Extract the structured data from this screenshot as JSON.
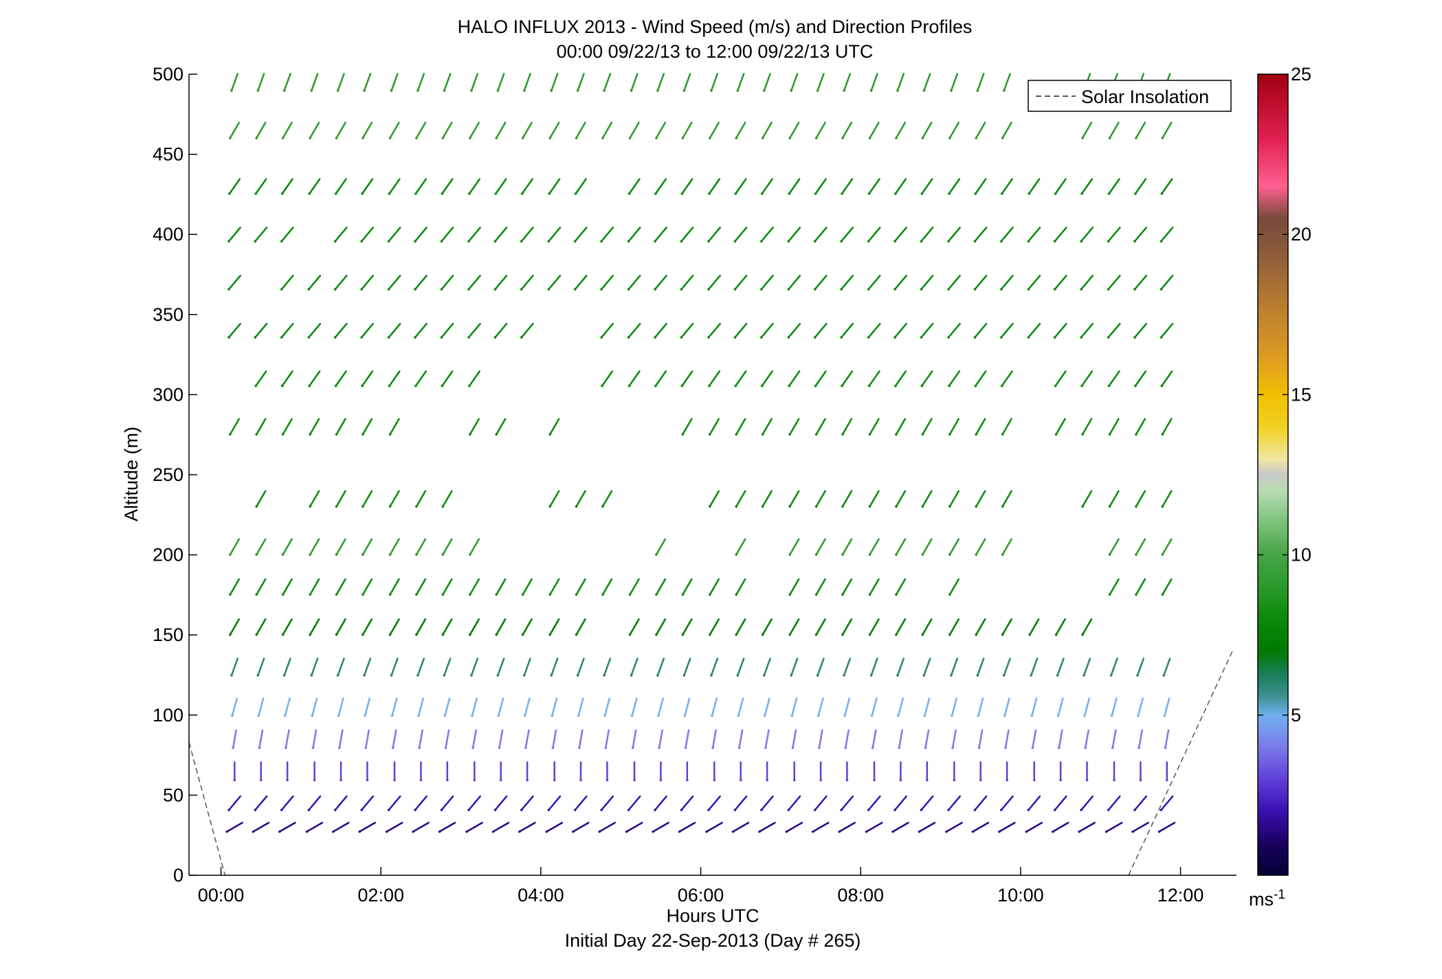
{
  "chart_data": {
    "type": "vector_field",
    "title": "HALO INFLUX 2013 - Wind Speed (m/s) and Direction Profiles",
    "subtitle": "00:00 09/22/13 to 12:00 09/22/13  UTC",
    "xlabel": "Hours UTC",
    "xlabel2": "Initial Day 22-Sep-2013 (Day # 265)",
    "ylabel": "Altitude (m)",
    "xlim": [
      -0.4,
      12.7
    ],
    "ylim": [
      0,
      500
    ],
    "x_ticks": [
      0,
      2,
      4,
      6,
      8,
      10,
      12
    ],
    "x_tick_labels": [
      "00:00",
      "02:00",
      "04:00",
      "06:00",
      "08:00",
      "10:00",
      "12:00"
    ],
    "y_ticks": [
      0,
      50,
      100,
      150,
      200,
      250,
      300,
      350,
      400,
      450,
      500
    ],
    "y_tick_labels": [
      "0",
      "50",
      "100",
      "150",
      "200",
      "250",
      "300",
      "350",
      "400",
      "450",
      "500"
    ],
    "legend": {
      "label": "Solar Insolation",
      "style": "dashed",
      "color": "#555555",
      "location": "top-right"
    },
    "colorbar": {
      "label": "ms-1",
      "label_main": "ms",
      "label_exp": "-1",
      "range": [
        0,
        25
      ],
      "ticks": [
        5,
        10,
        15,
        20,
        25
      ],
      "tick_labels": [
        "5",
        "10",
        "15",
        "20",
        "25"
      ],
      "colors": [
        {
          "v": 0,
          "c": "#000033"
        },
        {
          "v": 1,
          "c": "#1a0060"
        },
        {
          "v": 2,
          "c": "#3a10b0"
        },
        {
          "v": 3,
          "c": "#6040d8"
        },
        {
          "v": 4,
          "c": "#7a7ae8"
        },
        {
          "v": 5,
          "c": "#70b0f0"
        },
        {
          "v": 5.6,
          "c": "#3d9090"
        },
        {
          "v": 6.2,
          "c": "#1a8060"
        },
        {
          "v": 7,
          "c": "#007a00"
        },
        {
          "v": 8,
          "c": "#0a8a0a"
        },
        {
          "v": 9,
          "c": "#2a9a2a"
        },
        {
          "v": 10,
          "c": "#45a545"
        },
        {
          "v": 11,
          "c": "#7ac27a"
        },
        {
          "v": 12,
          "c": "#b8ddb0"
        },
        {
          "v": 12.5,
          "c": "#c8c8c8"
        },
        {
          "v": 13,
          "c": "#f0e8a0"
        },
        {
          "v": 14,
          "c": "#f0d020"
        },
        {
          "v": 15,
          "c": "#f0c000"
        },
        {
          "v": 16,
          "c": "#e0a020"
        },
        {
          "v": 18,
          "c": "#b47830"
        },
        {
          "v": 19.5,
          "c": "#8a5a3a"
        },
        {
          "v": 20.5,
          "c": "#7a4a3a"
        },
        {
          "v": 21.5,
          "c": "#ff6090"
        },
        {
          "v": 23,
          "c": "#e02050"
        },
        {
          "v": 25,
          "c": "#a00010"
        }
      ]
    },
    "columns_hours": [
      0.17,
      0.5,
      0.83,
      1.17,
      1.5,
      1.83,
      2.17,
      2.5,
      2.83,
      3.17,
      3.5,
      3.83,
      4.17,
      4.5,
      4.83,
      5.17,
      5.5,
      5.83,
      6.17,
      6.5,
      6.83,
      7.17,
      7.5,
      7.83,
      8.17,
      8.5,
      8.83,
      9.17,
      9.5,
      9.83,
      10.17,
      10.5,
      10.83,
      11.17,
      11.5,
      11.83
    ],
    "levels_m": [
      30,
      45,
      65,
      85,
      105,
      130,
      155,
      180,
      205,
      235,
      280,
      310,
      340,
      370,
      400,
      430,
      465,
      495
    ],
    "vectors": [
      {
        "z": 495,
        "cols": "0-29, 32-35",
        "dir_deg": 200,
        "speed_ms": 9
      },
      {
        "z": 465,
        "cols": "0-29, 32-35",
        "dir_deg": 210,
        "speed_ms": 9
      },
      {
        "z": 430,
        "cols": "0-13, 15-35",
        "dir_deg": 215,
        "speed_ms": 8
      },
      {
        "z": 400,
        "cols": "0-2, 4-35",
        "dir_deg": 220,
        "speed_ms": 8
      },
      {
        "z": 370,
        "cols": "0, 2-35",
        "dir_deg": 220,
        "speed_ms": 8
      },
      {
        "z": 340,
        "cols": "0-11, 14-35",
        "dir_deg": 220,
        "speed_ms": 8
      },
      {
        "z": 310,
        "cols": "1-9, 14-29, 31-35",
        "dir_deg": 215,
        "speed_ms": 8
      },
      {
        "z": 280,
        "cols": "0-6, 9-10, 12, 17-29, 31-35",
        "dir_deg": 210,
        "speed_ms": 8
      },
      {
        "z": 235,
        "cols": "1, 3-8, 12-14, 18-29, 32-35",
        "dir_deg": 210,
        "speed_ms": 8
      },
      {
        "z": 205,
        "cols": "0-9, 16, 19, 21-29, 33-35",
        "dir_deg": 210,
        "speed_ms": 9
      },
      {
        "z": 180,
        "cols": "0-14, 15-19, 21-25, 27, 33-35",
        "dir_deg": 210,
        "speed_ms": 8
      },
      {
        "z": 155,
        "cols": "0-13, 15-32",
        "dir_deg": 210,
        "speed_ms": 7
      },
      {
        "z": 130,
        "cols": "0-35",
        "dir_deg": 200,
        "speed_ms": 6
      },
      {
        "z": 105,
        "cols": "0-35",
        "dir_deg": 195,
        "speed_ms": 5
      },
      {
        "z": 85,
        "cols": "0-35",
        "dir_deg": 190,
        "speed_ms": 4
      },
      {
        "z": 65,
        "cols": "0-35",
        "dir_deg": 180,
        "speed_ms": 3
      },
      {
        "z": 45,
        "cols": "0-35",
        "dir_deg": 220,
        "speed_ms": 2
      },
      {
        "z": 30,
        "cols": "0-35",
        "dir_deg": 240,
        "speed_ms": 1.5
      }
    ]
  }
}
